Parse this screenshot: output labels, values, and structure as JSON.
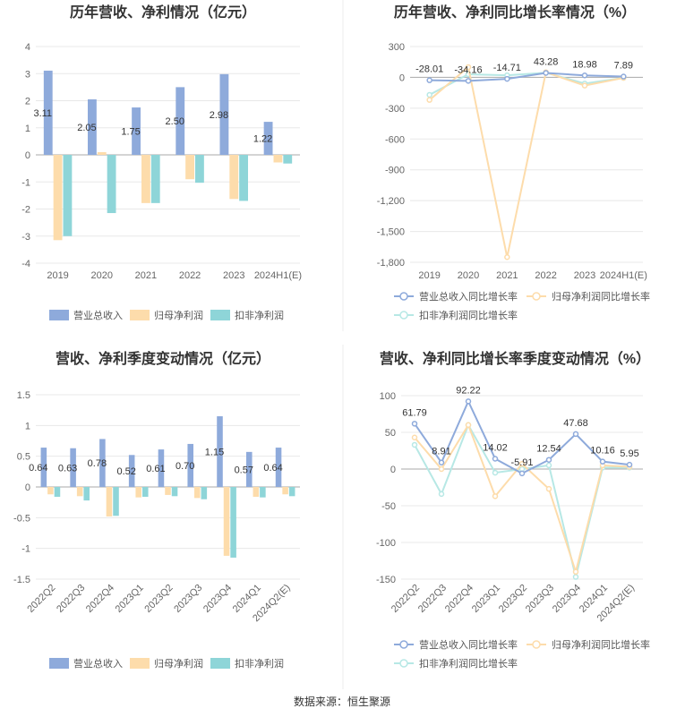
{
  "source": "数据来源：恒生聚源",
  "chart_data": [
    {
      "type": "bar",
      "title": "历年营收、净利情况（亿元）",
      "categories": [
        "2019",
        "2020",
        "2021",
        "2022",
        "2023",
        "2024H1(E)"
      ],
      "ylim": [
        -4,
        4
      ],
      "yticks": [
        "4",
        "3",
        "2",
        "1",
        "0",
        "-1",
        "-2",
        "-3",
        "-4"
      ],
      "series": [
        {
          "name": "营业总收入",
          "color": "#8eaadb",
          "values": [
            3.11,
            2.05,
            1.75,
            2.5,
            2.98,
            1.22
          ],
          "labels": [
            "3.11",
            "2.05",
            "1.75",
            "2.50",
            "2.98",
            "1.22"
          ]
        },
        {
          "name": "归母净利润",
          "color": "#fddcab",
          "values": [
            -3.15,
            0.1,
            -1.78,
            -0.9,
            -1.63,
            -0.28
          ]
        },
        {
          "name": "扣非净利润",
          "color": "#8ed5d8",
          "values": [
            -3.0,
            -2.15,
            -1.78,
            -1.03,
            -1.7,
            -0.32
          ]
        }
      ],
      "grid": true,
      "legend": "bottom"
    },
    {
      "type": "line",
      "title": "历年营收、净利同比增长率情况（%）",
      "categories": [
        "2019",
        "2020",
        "2021",
        "2022",
        "2023",
        "2024H1(E)"
      ],
      "ylim": [
        -1800,
        300
      ],
      "yticks": [
        "300",
        "0",
        "-300",
        "-600",
        "-900",
        "-1,200",
        "-1,500",
        "-1,800"
      ],
      "series": [
        {
          "name": "营业总收入同比增长率",
          "color": "#8eaadb",
          "values": [
            -28.01,
            -34.16,
            -14.71,
            43.28,
            18.98,
            7.89
          ],
          "labels": [
            "-28.01",
            "-34.16",
            "-14.71",
            "43.28",
            "18.98",
            "7.89"
          ]
        },
        {
          "name": "归母净利润同比增长率",
          "color": "#fddcab",
          "values": [
            -220,
            100,
            -1750,
            50,
            -80,
            -5
          ]
        },
        {
          "name": "扣非净利润同比增长率",
          "color": "#b7e8e5",
          "values": [
            -170,
            30,
            20,
            45,
            -60,
            -5
          ]
        }
      ],
      "grid": true,
      "legend": "bottom"
    },
    {
      "type": "bar",
      "title": "营收、净利季度变动情况（亿元）",
      "categories": [
        "2022Q2",
        "2022Q3",
        "2022Q4",
        "2023Q1",
        "2023Q2",
        "2023Q3",
        "2023Q4",
        "2024Q1",
        "2024Q2(E)"
      ],
      "ylim": [
        -1.5,
        1.5
      ],
      "yticks": [
        "1.5",
        "1",
        "0.5",
        "0",
        "-0.5",
        "-1",
        "-1.5"
      ],
      "series": [
        {
          "name": "营业总收入",
          "color": "#8eaadb",
          "values": [
            0.64,
            0.63,
            0.78,
            0.52,
            0.61,
            0.7,
            1.15,
            0.57,
            0.64
          ],
          "labels": [
            "0.64",
            "0.63",
            "0.78",
            "0.52",
            "0.61",
            "0.70",
            "1.15",
            "0.57",
            "0.64"
          ]
        },
        {
          "name": "归母净利润",
          "color": "#fddcab",
          "values": [
            -0.12,
            -0.15,
            -0.48,
            -0.17,
            -0.13,
            -0.18,
            -1.12,
            -0.16,
            -0.12
          ]
        },
        {
          "name": "扣非净利润",
          "color": "#8ed5d8",
          "values": [
            -0.16,
            -0.22,
            -0.47,
            -0.16,
            -0.15,
            -0.2,
            -1.15,
            -0.17,
            -0.15
          ]
        }
      ],
      "grid": true,
      "legend": "bottom"
    },
    {
      "type": "line",
      "title": "营收、净利同比增长率季度变动情况（%）",
      "categories": [
        "2022Q2",
        "2022Q3",
        "2022Q4",
        "2023Q1",
        "2023Q2",
        "2023Q3",
        "2023Q4",
        "2024Q1",
        "2024Q2(E)"
      ],
      "ylim": [
        -150,
        100
      ],
      "yticks": [
        "100",
        "50",
        "0",
        "-50",
        "-100",
        "-150"
      ],
      "series": [
        {
          "name": "营业总收入同比增长率",
          "color": "#8eaadb",
          "values": [
            61.79,
            8.91,
            92.22,
            14.02,
            -5.91,
            12.54,
            47.68,
            10.16,
            5.95
          ],
          "labels": [
            "61.79",
            "8.91",
            "92.22",
            "14.02",
            "-5.91",
            "12.54",
            "47.68",
            "10.16",
            "5.95"
          ]
        },
        {
          "name": "归母净利润同比增长率",
          "color": "#fddcab",
          "values": [
            43,
            0,
            60,
            -37,
            7,
            -27,
            -140,
            5,
            3
          ]
        },
        {
          "name": "扣非净利润同比增长率",
          "color": "#b7e8e5",
          "values": [
            33,
            -34,
            60,
            -5,
            0,
            5,
            -147,
            2,
            2
          ]
        }
      ],
      "grid": true,
      "legend": "bottom"
    }
  ]
}
